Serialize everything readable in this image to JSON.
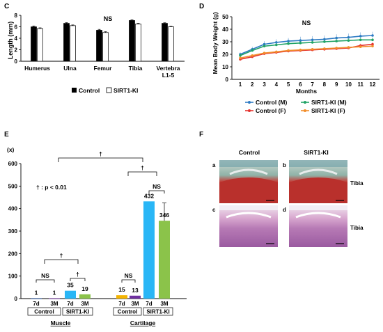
{
  "chart_data": [
    {
      "panel": "C",
      "type": "bar",
      "title": "NS",
      "ylabel": "Length (mm)",
      "ylim": [
        0,
        8
      ],
      "yticks": [
        "0",
        "2",
        "4",
        "6",
        "8"
      ],
      "categories": [
        "Humerus",
        "Ulna",
        "Femur",
        "Tibia",
        "Vertebra L1-5"
      ],
      "category_lines": [
        [
          "Humerus"
        ],
        [
          "Ulna"
        ],
        [
          "Femur"
        ],
        [
          "Tibia"
        ],
        [
          "Vertebra",
          "L1-5"
        ]
      ],
      "series": [
        {
          "name": "Control",
          "color": "#000000",
          "values": [
            6.0,
            6.6,
            5.4,
            7.1,
            6.6
          ],
          "errors": [
            0.15,
            0.12,
            0.15,
            0.12,
            0.1
          ]
        },
        {
          "name": "SIRT1-KI",
          "color": "#ffffff",
          "values": [
            5.7,
            6.2,
            5.0,
            6.5,
            6.0
          ],
          "errors": [
            0.12,
            0.12,
            0.15,
            0.1,
            0.1
          ]
        }
      ],
      "legend": "bottom"
    },
    {
      "panel": "D",
      "type": "line",
      "title": "NS",
      "xlabel": "Months",
      "ylabel": "Mean Body Weight (g)",
      "ylim": [
        0,
        50
      ],
      "yticks": [
        "0",
        "10",
        "20",
        "30",
        "40",
        "50"
      ],
      "x": [
        1,
        2,
        3,
        4,
        5,
        6,
        7,
        8,
        9,
        10,
        11,
        12
      ],
      "series": [
        {
          "name": "Control (M)",
          "color": "#2e7bc4",
          "values": [
            20,
            24,
            28,
            29.5,
            30.5,
            31,
            31.5,
            32,
            33,
            33.5,
            34.5,
            35
          ],
          "errors": [
            1.5,
            2,
            2.5,
            2.5,
            2.5,
            3,
            3,
            3,
            3,
            3,
            3,
            3
          ]
        },
        {
          "name": "SIRT1-KI (M)",
          "color": "#21a366",
          "values": [
            19,
            23,
            26.5,
            27.5,
            28.5,
            29,
            29.5,
            30,
            30.5,
            31,
            31.5,
            31.5
          ],
          "errors": [
            1.5,
            2,
            2,
            2,
            2,
            2,
            2,
            2,
            2,
            2,
            2,
            2
          ]
        },
        {
          "name": "Control (F)",
          "color": "#e5322d",
          "values": [
            16,
            18,
            20.5,
            21.5,
            22.5,
            23,
            23.5,
            24,
            24.5,
            25,
            27,
            28
          ],
          "errors": [
            1,
            1,
            1,
            1,
            1,
            1,
            1,
            1,
            1,
            1,
            1.5,
            1.5
          ]
        },
        {
          "name": "SIRT1-KI (F)",
          "color": "#f28e2b",
          "values": [
            17,
            19,
            21,
            22,
            23,
            23.5,
            24,
            24.5,
            25,
            25.5,
            26,
            26.5
          ],
          "errors": [
            1,
            1,
            1,
            1,
            1,
            1,
            1,
            1,
            1,
            1,
            1,
            1
          ]
        }
      ],
      "legend": "bottom"
    },
    {
      "panel": "E",
      "type": "bar",
      "ylabel": "(x)",
      "ylim": [
        0,
        600
      ],
      "yticks": [
        "0",
        "100",
        "200",
        "300",
        "400",
        "500",
        "600"
      ],
      "annotation": "† : p < 0.01",
      "significance": {
        "ns": "NS",
        "dagger": "†"
      },
      "bars": [
        {
          "group": "Muscle",
          "genotype": "Control",
          "time": "7d",
          "value": 1,
          "label": "1",
          "color": "#1f4e9c"
        },
        {
          "group": "Muscle",
          "genotype": "Control",
          "time": "3M",
          "value": 1,
          "label": "1",
          "color": "#7030a0"
        },
        {
          "group": "Muscle",
          "genotype": "SIRT1-KI",
          "time": "7d",
          "value": 35,
          "label": "35",
          "color": "#29b6f6"
        },
        {
          "group": "Muscle",
          "genotype": "SIRT1-KI",
          "time": "3M",
          "value": 19,
          "label": "19",
          "color": "#8bc34a"
        },
        {
          "group": "Cartilage",
          "genotype": "Control",
          "time": "7d",
          "value": 15,
          "label": "15",
          "color": "#f4b400"
        },
        {
          "group": "Cartilage",
          "genotype": "Control",
          "time": "3M",
          "value": 13,
          "label": "13",
          "color": "#7030a0"
        },
        {
          "group": "Cartilage",
          "genotype": "SIRT1-KI",
          "time": "7d",
          "value": 432,
          "label": "432",
          "color": "#29b6f6"
        },
        {
          "group": "Cartilage",
          "genotype": "SIRT1-KI",
          "time": "3M",
          "value": 346,
          "label": "346",
          "color": "#8bc34a"
        }
      ],
      "genotypes": [
        "Control",
        "SIRT1-KI"
      ],
      "groups": [
        "Muscle",
        "Cartilage"
      ]
    }
  ],
  "panels": {
    "c_letter": "C",
    "d_letter": "D",
    "e_letter": "E",
    "f_letter": "F"
  },
  "histology": {
    "columns": [
      "Control",
      "SIRT1-KI"
    ],
    "tissue_label": "Tibia",
    "panel_labels": [
      "a",
      "b",
      "c",
      "d"
    ]
  }
}
